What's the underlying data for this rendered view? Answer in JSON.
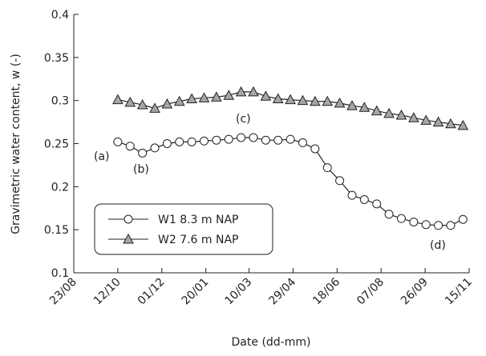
{
  "chart_data": {
    "type": "line",
    "y_label": "Gravimetric water content, w (-)",
    "x_label": "Date (dd-mm)",
    "annotations": [
      "(a)",
      "(b)",
      "(c)",
      "(d)"
    ],
    "x": [
      "12/10",
      "26/10",
      "09/11",
      "23/11",
      "07/12",
      "21/12",
      "04/01",
      "18/01",
      "01/02",
      "15/02",
      "01/03",
      "15/03",
      "29/03",
      "12/04",
      "26/04",
      "10/05",
      "24/05",
      "07/06",
      "21/06",
      "05/07",
      "19/07",
      "02/08",
      "16/08",
      "30/08",
      "13/09",
      "27/09",
      "11/10",
      "25/10",
      "08/11"
    ],
    "series": [
      {
        "name": "W1 8.3 m NAP",
        "color": "#ffffff",
        "marker": "circle",
        "values": [
          0.252,
          0.247,
          0.239,
          0.245,
          0.25,
          0.252,
          0.252,
          0.253,
          0.254,
          0.255,
          0.257,
          0.257,
          0.254,
          0.254,
          0.255,
          0.251,
          0.244,
          0.222,
          0.207,
          0.19,
          0.185,
          0.18,
          0.168,
          0.163,
          0.159,
          0.156,
          0.155,
          0.155,
          0.162
        ]
      },
      {
        "name": "W2 7.6 m NAP",
        "color": "#a6a6a6",
        "marker": "triangle",
        "values": [
          0.301,
          0.298,
          0.295,
          0.291,
          0.296,
          0.299,
          0.302,
          0.303,
          0.304,
          0.306,
          0.31,
          0.31,
          0.305,
          0.302,
          0.301,
          0.3,
          0.299,
          0.299,
          0.297,
          0.294,
          0.292,
          0.288,
          0.285,
          0.283,
          0.28,
          0.277,
          0.275,
          0.273,
          0.271
        ]
      }
    ],
    "xlim": [
      "23/08",
      "15/11"
    ],
    "xticks": [
      "23/08",
      "12/10",
      "01/12",
      "20/01",
      "10/03",
      "29/04",
      "18/06",
      "07/08",
      "26/09",
      "15/11"
    ],
    "ylim": [
      0.1,
      0.4
    ],
    "yticks": [
      0.1,
      0.15,
      0.2,
      0.25,
      0.3,
      0.35,
      0.4
    ],
    "grid": false
  }
}
